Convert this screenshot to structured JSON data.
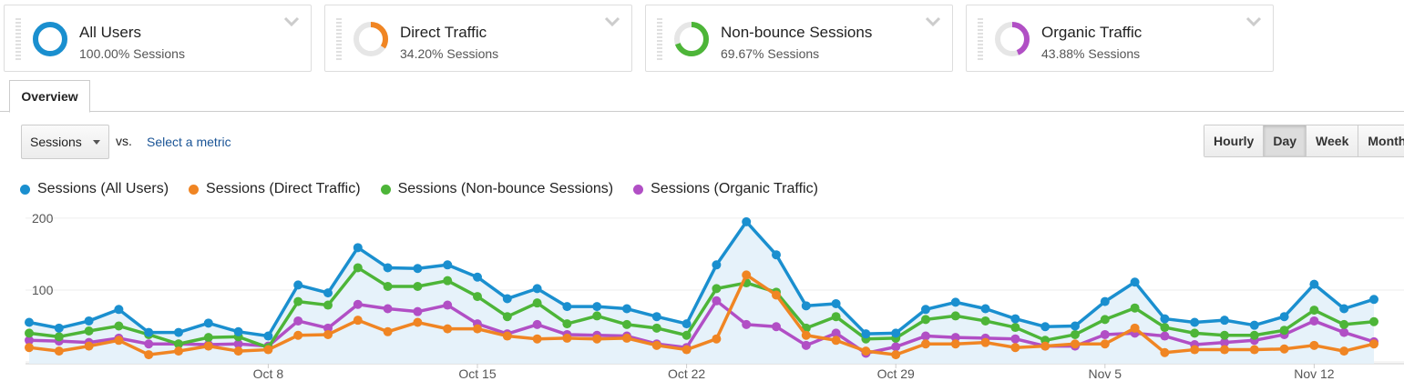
{
  "segments": [
    {
      "name": "All Users",
      "sub": "100.00% Sessions",
      "color": "#1a8fcf",
      "pct": 100
    },
    {
      "name": "Direct Traffic",
      "sub": "34.20% Sessions",
      "color": "#f08523",
      "pct": 34.2
    },
    {
      "name": "Non-bounce Sessions",
      "sub": "69.67% Sessions",
      "color": "#4db538",
      "pct": 69.67
    },
    {
      "name": "Organic Traffic",
      "sub": "43.88% Sessions",
      "color": "#b14fc5",
      "pct": 43.88
    }
  ],
  "tabs": {
    "overview": "Overview"
  },
  "toolbar": {
    "metric": "Sessions",
    "vs": "vs.",
    "select_metric": "Select a metric",
    "periods": [
      "Hourly",
      "Day",
      "Week",
      "Month"
    ],
    "active_period": "Day"
  },
  "chart_data": {
    "type": "line",
    "y_ticks": [
      "200",
      "100"
    ],
    "ylim": [
      0,
      210
    ],
    "x_labels": [
      {
        "label": "Oct 8",
        "index": 8
      },
      {
        "label": "Oct 15",
        "index": 15
      },
      {
        "label": "Oct 22",
        "index": 22
      },
      {
        "label": "Oct 29",
        "index": 29
      },
      {
        "label": "Nov 5",
        "index": 36
      },
      {
        "label": "Nov 12",
        "index": 43
      }
    ],
    "series": [
      {
        "name": "Sessions (All Users)",
        "color": "#1a8fcf",
        "fill": true,
        "values": [
          55,
          47,
          57,
          73,
          41,
          41,
          54,
          42,
          36,
          107,
          96,
          159,
          131,
          130,
          135,
          118,
          88,
          102,
          77,
          77,
          74,
          63,
          53,
          135,
          195,
          149,
          78,
          81,
          39,
          40,
          73,
          83,
          74,
          60,
          49,
          50,
          84,
          111,
          60,
          55,
          58,
          51,
          63,
          108,
          74,
          87
        ]
      },
      {
        "name": "Sessions (Direct Traffic)",
        "color": "#f08523",
        "fill": false,
        "values": [
          20,
          15,
          22,
          30,
          10,
          15,
          22,
          15,
          17,
          37,
          38,
          58,
          42,
          55,
          46,
          46,
          36,
          32,
          33,
          32,
          33,
          23,
          17,
          32,
          121,
          93,
          37,
          30,
          15,
          10,
          25,
          25,
          27,
          20,
          22,
          25,
          25,
          47,
          13,
          17,
          17,
          17,
          18,
          23,
          15,
          25
        ]
      },
      {
        "name": "Sessions (Non-bounce Sessions)",
        "color": "#4db538",
        "fill": false,
        "values": [
          40,
          35,
          43,
          50,
          38,
          25,
          34,
          35,
          20,
          84,
          79,
          131,
          105,
          105,
          113,
          91,
          63,
          82,
          53,
          64,
          52,
          47,
          37,
          102,
          110,
          97,
          47,
          63,
          32,
          33,
          59,
          64,
          57,
          48,
          30,
          38,
          59,
          75,
          48,
          40,
          37,
          37,
          44,
          72,
          52,
          56
        ]
      },
      {
        "name": "Sessions (Organic Traffic)",
        "color": "#b14fc5",
        "fill": false,
        "values": [
          30,
          29,
          27,
          33,
          25,
          25,
          24,
          25,
          22,
          57,
          47,
          80,
          74,
          70,
          79,
          53,
          39,
          52,
          38,
          37,
          36,
          25,
          20,
          85,
          52,
          49,
          23,
          40,
          12,
          21,
          36,
          34,
          33,
          32,
          22,
          22,
          38,
          40,
          36,
          24,
          27,
          30,
          38,
          57,
          41,
          28
        ]
      }
    ]
  }
}
